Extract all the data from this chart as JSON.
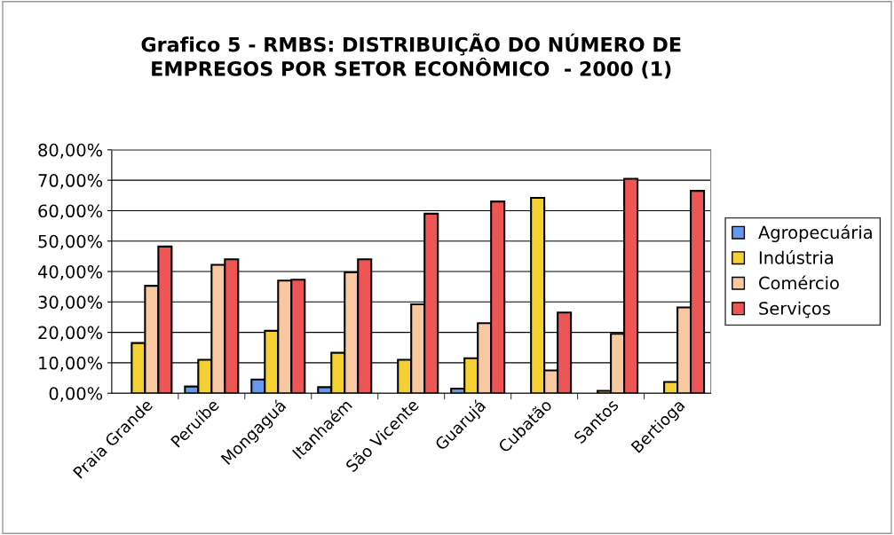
{
  "chart_data": {
    "type": "bar",
    "title": "Grafico 5 - RMBS: DISTRIBUIÇÃO DO NÚMERO DE\nEMPREGOS POR SETOR ECONÔMICO  - 2000 (1)",
    "categories": [
      "Praia Grande",
      "Peruíbe",
      "Mongaguá",
      "Itanhaém",
      "São Vicente",
      "Guarujá",
      "Cubatão",
      "Santos",
      "Bertioga"
    ],
    "series": [
      {
        "name": "Agropecuária",
        "color": "#6699ee",
        "values": [
          null,
          2.2,
          4.5,
          2.0,
          null,
          1.5,
          null,
          null,
          null
        ]
      },
      {
        "name": "Indústria",
        "color": "#f5d033",
        "values": [
          16.5,
          11.0,
          20.5,
          13.3,
          11.0,
          11.5,
          64.2,
          0.8,
          3.7
        ]
      },
      {
        "name": "Comércio",
        "color": "#f8c8a0",
        "values": [
          35.3,
          42.2,
          37.0,
          39.7,
          29.2,
          23.0,
          7.5,
          19.5,
          28.2
        ]
      },
      {
        "name": "Serviços",
        "color": "#ee5555",
        "values": [
          48.2,
          44.0,
          37.3,
          44.0,
          59.0,
          63.0,
          26.5,
          70.5,
          66.5
        ]
      }
    ],
    "ylim": [
      0,
      80
    ],
    "yticks": [
      {
        "value": 0,
        "label": "0,00%"
      },
      {
        "value": 10,
        "label": "10,00%"
      },
      {
        "value": 20,
        "label": "20,00%"
      },
      {
        "value": 30,
        "label": "30,00%"
      },
      {
        "value": 40,
        "label": "40,00%"
      },
      {
        "value": 50,
        "label": "50,00%"
      },
      {
        "value": 60,
        "label": "60,00%"
      },
      {
        "value": 70,
        "label": "70,00%"
      },
      {
        "value": 80,
        "label": "80,00%"
      }
    ],
    "grid": "y",
    "legend": "right"
  }
}
